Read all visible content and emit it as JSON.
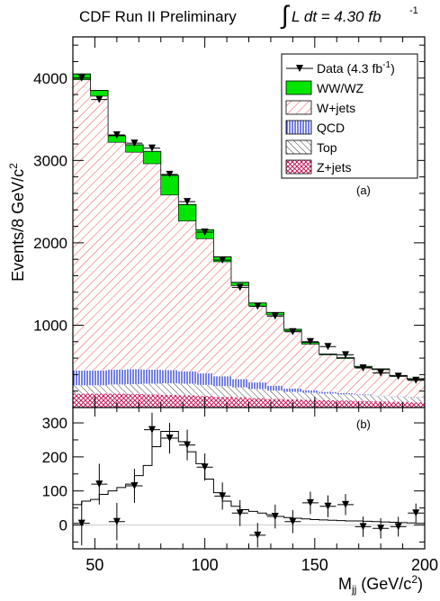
{
  "title_main": "CDF Run II Preliminary",
  "title_lumi": "L dt = 4.30 fb",
  "title_lumi_sup": "-1",
  "colors": {
    "ww_wz": "#00e600",
    "w_jets": "#e35d5d",
    "qcd": "#1a2bd6",
    "top": "#444444",
    "z_jets": "#c8004a",
    "frame": "#000000"
  },
  "chart_data": [
    {
      "panel": "a",
      "panel_label": "(a)",
      "type": "bar",
      "stacked": true,
      "xlabel": "",
      "ylabel": "Events/8 GeV/c",
      "ylabel_sup": "2",
      "xlim": [
        40,
        200
      ],
      "ylim": [
        0,
        4500
      ],
      "yticks": [
        1000,
        2000,
        3000,
        4000
      ],
      "bin_edges": [
        40,
        48,
        56,
        64,
        72,
        80,
        88,
        96,
        104,
        112,
        120,
        128,
        136,
        144,
        152,
        160,
        168,
        176,
        184,
        192,
        200
      ],
      "series": [
        {
          "name": "Z+jets",
          "key": "z_jets",
          "pattern": "cross",
          "values": [
            170,
            170,
            170,
            165,
            160,
            155,
            150,
            140,
            130,
            125,
            115,
            105,
            100,
            95,
            90,
            85,
            80,
            75,
            70,
            65
          ]
        },
        {
          "name": "Top",
          "key": "top",
          "pattern": "hatch-down",
          "values": [
            100,
            100,
            110,
            120,
            130,
            140,
            140,
            135,
            130,
            120,
            110,
            100,
            90,
            85,
            80,
            75,
            70,
            65,
            60,
            55
          ]
        },
        {
          "name": "QCD",
          "key": "qcd",
          "pattern": "vlines",
          "values": [
            180,
            180,
            180,
            180,
            170,
            160,
            150,
            140,
            120,
            100,
            80,
            60,
            40,
            30,
            20,
            15,
            10,
            5,
            5,
            5
          ]
        },
        {
          "name": "W+jets",
          "key": "w_jets",
          "pattern": "hatch-up",
          "values": [
            3530,
            3330,
            2760,
            2635,
            2500,
            2125,
            1825,
            1635,
            1390,
            1135,
            925,
            860,
            700,
            560,
            450,
            420,
            330,
            315,
            245,
            215
          ]
        },
        {
          "name": "WW/WZ",
          "key": "ww_wz",
          "pattern": "solid",
          "values": [
            70,
            70,
            80,
            90,
            150,
            240,
            200,
            110,
            60,
            40,
            40,
            30,
            20,
            20,
            10,
            10,
            10,
            10,
            10,
            10
          ]
        }
      ],
      "data": {
        "name": "Data (4.3 fb",
        "name_sup": "-1",
        "name_suffix": ")",
        "x": [
          44,
          52,
          60,
          68,
          76,
          84,
          92,
          100,
          108,
          116,
          124,
          132,
          140,
          148,
          156,
          164,
          172,
          180,
          188,
          196
        ],
        "y": [
          4000,
          3740,
          3310,
          3210,
          3150,
          2830,
          2500,
          2130,
          1790,
          1460,
          1230,
          1110,
          920,
          800,
          740,
          640,
          480,
          420,
          380,
          330
        ]
      },
      "legend_placement": "top-right"
    },
    {
      "panel": "b",
      "panel_label": "(b)",
      "type": "line",
      "xlabel": "M",
      "xlabel_sub": "jj",
      "xlabel_suffix": " (GeV/c",
      "xlabel_sup": "2",
      "xlabel_close": ")",
      "ylabel": "",
      "xlim": [
        40,
        200
      ],
      "ylim": [
        -70,
        345
      ],
      "xticks": [
        50,
        100,
        150,
        200
      ],
      "yticks": [
        0,
        100,
        200,
        300
      ],
      "curve": {
        "bin_edges": [
          40,
          44,
          48,
          52,
          56,
          60,
          64,
          68,
          72,
          76,
          80,
          84,
          88,
          92,
          96,
          100,
          104,
          108,
          112,
          116,
          120,
          124,
          128,
          132,
          136,
          140,
          144,
          148,
          152,
          156,
          160,
          164,
          168,
          172,
          176,
          180,
          184,
          188,
          192,
          196,
          200
        ],
        "values": [
          60,
          70,
          75,
          90,
          100,
          110,
          120,
          145,
          175,
          230,
          275,
          275,
          245,
          215,
          180,
          135,
          95,
          70,
          55,
          45,
          40,
          35,
          30,
          25,
          22,
          20,
          18,
          16,
          15,
          14,
          13,
          12,
          12,
          11,
          10,
          9,
          8,
          7,
          6,
          5
        ]
      },
      "data": {
        "x": [
          44,
          52,
          60,
          68,
          76,
          84,
          92,
          100,
          108,
          116,
          124,
          132,
          140,
          148,
          156,
          164,
          172,
          180,
          188,
          196
        ],
        "y": [
          5,
          120,
          10,
          115,
          280,
          255,
          235,
          170,
          85,
          35,
          -30,
          25,
          10,
          65,
          55,
          60,
          -5,
          -10,
          -5,
          35
        ],
        "yerr": [
          65,
          60,
          55,
          50,
          50,
          45,
          45,
          40,
          40,
          38,
          36,
          35,
          34,
          33,
          32,
          31,
          30,
          30,
          29,
          28
        ]
      }
    }
  ]
}
